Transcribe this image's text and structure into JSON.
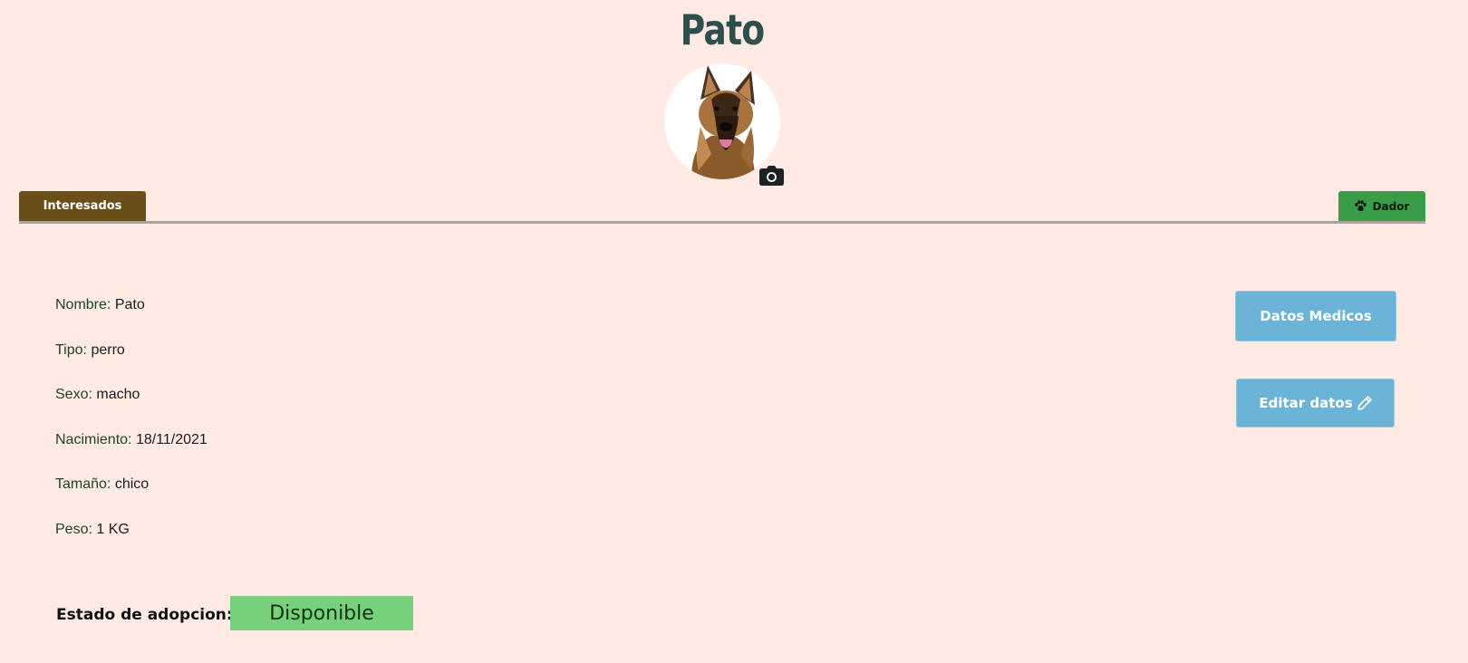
{
  "pet": {
    "name": "Pato"
  },
  "tabs": {
    "interesados_label": "Interesados",
    "dador_label": "Dador"
  },
  "details": [
    {
      "label": "Nombre:",
      "value": "Pato"
    },
    {
      "label": "Tipo:",
      "value": "perro"
    },
    {
      "label": "Sexo:",
      "value": "macho"
    },
    {
      "label": "Nacimiento:",
      "value": "18/11/2021"
    },
    {
      "label": "Tamaño:",
      "value": "chico"
    },
    {
      "label": "Peso:",
      "value": "1 KG"
    }
  ],
  "actions": {
    "datos_medicos_label": "Datos Medicos",
    "editar_datos_label": "Editar datos"
  },
  "adoption": {
    "label": "Estado de adopcion:",
    "status": "Disponible"
  },
  "icons": {
    "camera": "camera-icon",
    "paw": "paw-icon",
    "pencil": "pencil-icon"
  },
  "colors": {
    "background": "#ffebe4",
    "title": "#2f4f4f",
    "interesados": "#6b4f19",
    "dador": "#3a9c49",
    "side_button": "#6bb4d8",
    "status_badge": "#77d07a"
  }
}
